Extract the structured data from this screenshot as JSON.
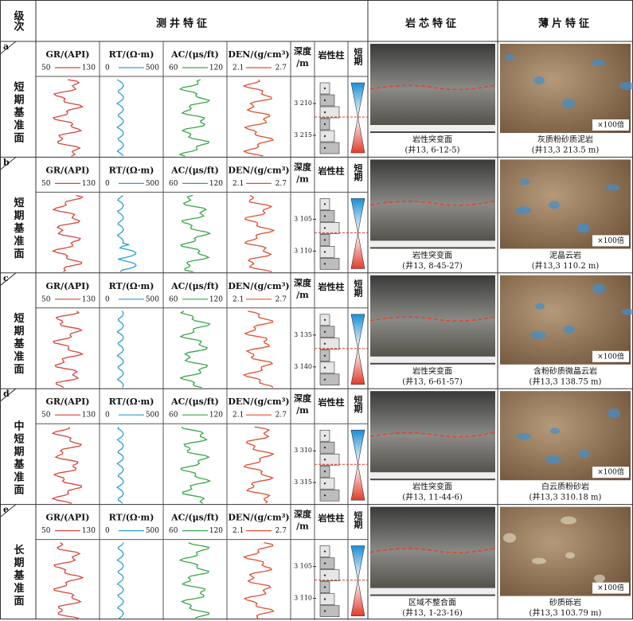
{
  "header": {
    "level": "级次",
    "logs": "测井特征",
    "core": "岩芯特征",
    "thin": "薄片特征"
  },
  "logs": [
    {
      "name": "GR/(API)",
      "min": "50",
      "max": "130",
      "color": "#d9453b"
    },
    {
      "name": "RT/(Ω·m)",
      "min": "0",
      "max": "500",
      "color": "#2a9fd8"
    },
    {
      "name": "AC/(μs/ft)",
      "min": "60",
      "max": "120",
      "color": "#3aa64a"
    },
    {
      "name": "DEN/(g/cm³)",
      "min": "2.1",
      "max": "2.7",
      "color": "#e0502e"
    }
  ],
  "depth_header": [
    "深度",
    "/m"
  ],
  "litho_header": "岩性柱",
  "cycle_header": "短期",
  "magnification": "×100倍",
  "rows": [
    {
      "letter": "a",
      "level": "短期基准面",
      "depth_ticks": [
        "3 210",
        "3 215"
      ],
      "core_caption": "岩性突变面",
      "core_sample": "(井13, 6-12-5)",
      "thin_rock": "灰质粉砂质泥岩",
      "thin_sample": "(井13,3 213.5 m)"
    },
    {
      "letter": "b",
      "level": "短期基准面",
      "depth_ticks": [
        "3 105",
        "3 110"
      ],
      "core_caption": "岩性突变面",
      "core_sample": "(井13, 8-45-27)",
      "thin_rock": "泥晶云岩",
      "thin_sample": "(井13,3 110.2 m)"
    },
    {
      "letter": "c",
      "level": "短期基准面",
      "depth_ticks": [
        "3 135",
        "3 140"
      ],
      "core_caption": "岩性突变面",
      "core_sample": "(井13, 6-61-57)",
      "thin_rock": "含粉砂质微晶云岩",
      "thin_sample": "(井13,3 138.75 m)"
    },
    {
      "letter": "d",
      "level": "中短期基准面",
      "depth_ticks": [
        "3 310",
        "3 315"
      ],
      "core_caption": "岩性突变面",
      "core_sample": "(井13, 11-44-6)",
      "thin_rock": "白云质粉砂岩",
      "thin_sample": "(井13,3 310.18 m)"
    },
    {
      "letter": "e",
      "level": "长期基准面",
      "depth_ticks": [
        "3 105",
        "3 110"
      ],
      "core_caption": "区域不整合面",
      "core_sample": "(井13, 1-23-16)",
      "thin_rock": "砂质砾岩",
      "thin_sample": "(井13,3 103.79 m)"
    }
  ]
}
